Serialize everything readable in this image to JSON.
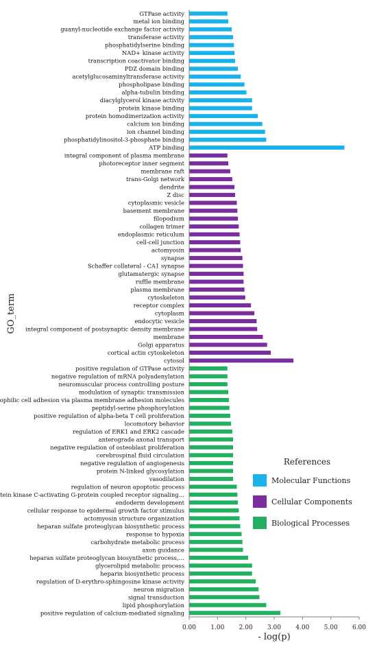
{
  "chart_data": {
    "type": "bar",
    "orientation": "horizontal",
    "title": "",
    "xlabel": "- log(p)",
    "ylabel": "GO_term",
    "xlim": [
      0,
      6
    ],
    "xticks": [
      "0.00",
      "1.00",
      "2.00",
      "3.00",
      "4.00",
      "5.00",
      "6.00"
    ],
    "grid": false,
    "legend": {
      "title": "References",
      "placement": "right",
      "entries": [
        {
          "name": "Molecular Functions",
          "color": "#1ab2ea"
        },
        {
          "name": "Cellular Components",
          "color": "#7a2d9f"
        },
        {
          "name": "Biological Processes",
          "color": "#22b060"
        }
      ]
    },
    "bars": [
      {
        "label": "GTPase activity",
        "value": 1.35,
        "group": 0
      },
      {
        "label": "metal ion binding",
        "value": 1.38,
        "group": 0
      },
      {
        "label": "guanyl-nucleotide exchange factor activity",
        "value": 1.5,
        "group": 0
      },
      {
        "label": "transferase activity",
        "value": 1.55,
        "group": 0
      },
      {
        "label": "phosphatidylserine binding",
        "value": 1.58,
        "group": 0
      },
      {
        "label": "NAD+ kinase activity",
        "value": 1.6,
        "group": 0
      },
      {
        "label": "transcription coactivator binding",
        "value": 1.62,
        "group": 0
      },
      {
        "label": "PDZ domain binding",
        "value": 1.72,
        "group": 0
      },
      {
        "label": "acetylglucosaminyltransferase activity",
        "value": 1.82,
        "group": 0
      },
      {
        "label": "phospholipase binding",
        "value": 1.95,
        "group": 0
      },
      {
        "label": "alpha-tubulin binding",
        "value": 2.02,
        "group": 0
      },
      {
        "label": "diacylglycerol kinase activity",
        "value": 2.22,
        "group": 0
      },
      {
        "label": "protein kinase binding",
        "value": 2.22,
        "group": 0
      },
      {
        "label": "protein homodimerization activity",
        "value": 2.42,
        "group": 0
      },
      {
        "label": "calcium ion binding",
        "value": 2.58,
        "group": 0
      },
      {
        "label": "ion channel binding",
        "value": 2.68,
        "group": 0
      },
      {
        "label": "phosphatidylinositol-3-phosphate binding",
        "value": 2.72,
        "group": 0
      },
      {
        "label": "ATP binding",
        "value": 5.48,
        "group": 0
      },
      {
        "label": "integral component of plasma membrane",
        "value": 1.35,
        "group": 1
      },
      {
        "label": "photoreceptor inner segment",
        "value": 1.38,
        "group": 1
      },
      {
        "label": "membrane raft",
        "value": 1.45,
        "group": 1
      },
      {
        "label": "trans-Golgi network",
        "value": 1.52,
        "group": 1
      },
      {
        "label": "dendrite",
        "value": 1.6,
        "group": 1
      },
      {
        "label": "Z disc",
        "value": 1.62,
        "group": 1
      },
      {
        "label": "cytoplasmic vesicle",
        "value": 1.68,
        "group": 1
      },
      {
        "label": "basement membrane",
        "value": 1.7,
        "group": 1
      },
      {
        "label": "filopodium",
        "value": 1.72,
        "group": 1
      },
      {
        "label": "collagen trimer",
        "value": 1.75,
        "group": 1
      },
      {
        "label": "endoplasmic reticulum",
        "value": 1.78,
        "group": 1
      },
      {
        "label": "cell-cell junction",
        "value": 1.8,
        "group": 1
      },
      {
        "label": "actomyosin",
        "value": 1.82,
        "group": 1
      },
      {
        "label": "synapse",
        "value": 1.88,
        "group": 1
      },
      {
        "label": "Schaffer collateral - CA1 synapse",
        "value": 1.9,
        "group": 1
      },
      {
        "label": "glutamatergic synapse",
        "value": 1.92,
        "group": 1
      },
      {
        "label": "ruffle membrane",
        "value": 1.92,
        "group": 1
      },
      {
        "label": "plasma membrane",
        "value": 1.95,
        "group": 1
      },
      {
        "label": "cytoskeleton",
        "value": 1.98,
        "group": 1
      },
      {
        "label": "receptor complex",
        "value": 2.18,
        "group": 1
      },
      {
        "label": "cytoplasm",
        "value": 2.3,
        "group": 1
      },
      {
        "label": "endocytic vesicle",
        "value": 2.38,
        "group": 1
      },
      {
        "label": "integral component of postsynaptic density membrane",
        "value": 2.4,
        "group": 1
      },
      {
        "label": "membrane",
        "value": 2.6,
        "group": 1
      },
      {
        "label": "Golgi apparatus",
        "value": 2.75,
        "group": 1
      },
      {
        "label": "cortical actin cytoskeleton",
        "value": 2.88,
        "group": 1
      },
      {
        "label": "cytosol",
        "value": 3.68,
        "group": 1
      },
      {
        "label": "positive regulation of GTPase activity",
        "value": 1.35,
        "group": 2
      },
      {
        "label": "negative regulation of mRNA polyadenylation",
        "value": 1.35,
        "group": 2
      },
      {
        "label": "neuromuscular process controlling posture",
        "value": 1.35,
        "group": 2
      },
      {
        "label": "modulation of synaptic transmission",
        "value": 1.38,
        "group": 2
      },
      {
        "label": "homophilic cell adhesion via plasma membrane adhesion molecules",
        "value": 1.4,
        "group": 2
      },
      {
        "label": "peptidyl-serine phosphorylation",
        "value": 1.42,
        "group": 2
      },
      {
        "label": "positive regulation of alpha-beta T cell proliferation",
        "value": 1.45,
        "group": 2
      },
      {
        "label": "locomotory behavior",
        "value": 1.48,
        "group": 2
      },
      {
        "label": "regulation of ERK1 and ERK2 cascade",
        "value": 1.52,
        "group": 2
      },
      {
        "label": "anterograde axonal transport",
        "value": 1.55,
        "group": 2
      },
      {
        "label": "negative regulation of osteoblast proliferation",
        "value": 1.55,
        "group": 2
      },
      {
        "label": "cerebrospinal fluid circulation",
        "value": 1.55,
        "group": 2
      },
      {
        "label": "negative regulation of angiogenesis",
        "value": 1.55,
        "group": 2
      },
      {
        "label": "protein N-linked glycosylation",
        "value": 1.55,
        "group": 2
      },
      {
        "label": "vasodilation",
        "value": 1.55,
        "group": 2
      },
      {
        "label": "regulation of neuron apoptotic process",
        "value": 1.68,
        "group": 2
      },
      {
        "label": "protein kinase C-activating G-protein coupled receptor signaling…",
        "value": 1.7,
        "group": 2
      },
      {
        "label": "endoderm development",
        "value": 1.72,
        "group": 2
      },
      {
        "label": "cellular response to epidermal growth factor stimulus",
        "value": 1.75,
        "group": 2
      },
      {
        "label": "actomyosin structure organization",
        "value": 1.78,
        "group": 2
      },
      {
        "label": "heparan sulfate proteoglycan biosynthetic process",
        "value": 1.8,
        "group": 2
      },
      {
        "label": "response to hypoxia",
        "value": 1.85,
        "group": 2
      },
      {
        "label": "carbohydrate metabolic process",
        "value": 1.88,
        "group": 2
      },
      {
        "label": "axon guidance",
        "value": 1.9,
        "group": 2
      },
      {
        "label": "heparan sulfate proteoglycan biosynthetic process,…",
        "value": 2.08,
        "group": 2
      },
      {
        "label": "glycerolipid metabolic process",
        "value": 2.22,
        "group": 2
      },
      {
        "label": "heparin biosynthetic process",
        "value": 2.22,
        "group": 2
      },
      {
        "label": "regulation of D-erythro-sphingosine kinase activity",
        "value": 2.35,
        "group": 2
      },
      {
        "label": "neuron migration",
        "value": 2.45,
        "group": 2
      },
      {
        "label": "signal transduction",
        "value": 2.48,
        "group": 2
      },
      {
        "label": "lipid phosphorylation",
        "value": 2.72,
        "group": 2
      },
      {
        "label": "positive regulation of calcium-mediated signaling",
        "value": 3.22,
        "group": 2
      }
    ]
  }
}
